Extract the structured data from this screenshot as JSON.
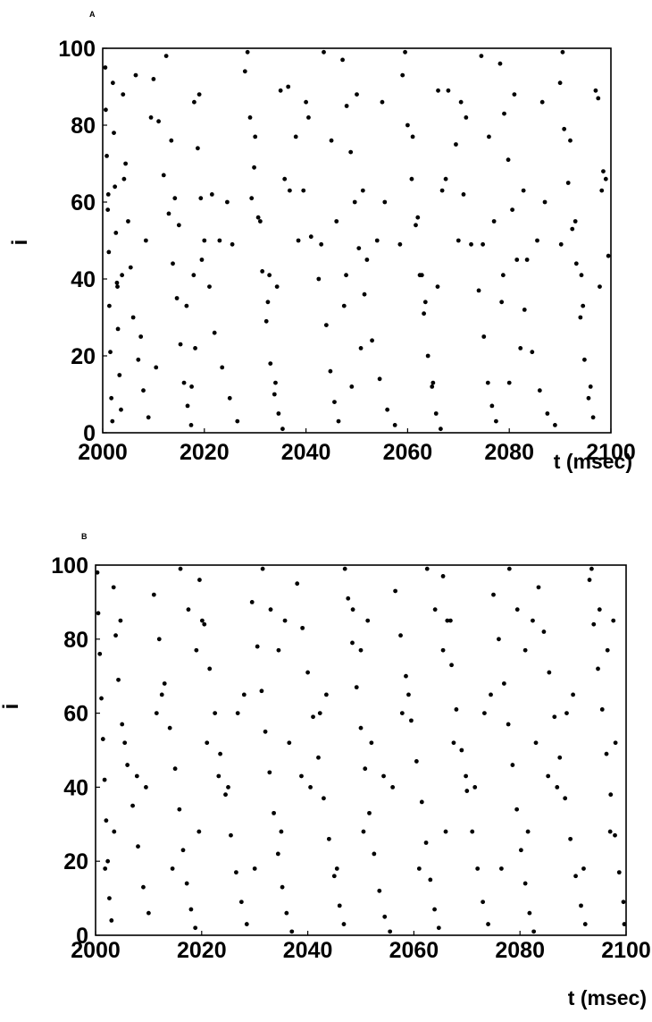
{
  "chart_data": [
    {
      "type": "scatter",
      "panel_label": "A",
      "xlabel": "t (msec)",
      "ylabel": "i",
      "xlim": [
        2000,
        2100
      ],
      "ylim": [
        0,
        100
      ],
      "x_ticks": [
        2000,
        2020,
        2040,
        2060,
        2080,
        2100
      ],
      "y_ticks": [
        0,
        20,
        40,
        60,
        80,
        100
      ],
      "grid": false,
      "marker_color": "#000000",
      "points_x": [
        2000.5,
        2000.6,
        2000.8,
        2001.0,
        2001.2,
        2001.3,
        2001.5,
        2001.7,
        2001.9,
        2002.0,
        2002.2,
        2002.4,
        2002.6,
        2002.8,
        2003.0,
        2003.3,
        2003.6,
        2004.0,
        2004.5,
        2005.0,
        2005.5,
        2006.0,
        2007.0,
        2008.0,
        2009.0,
        2010.0,
        2011.0,
        2012.0,
        2013.0,
        2013.8,
        2014.6,
        2015.3,
        2016.0,
        2016.7,
        2017.4,
        2018.0,
        2018.7,
        2019.3,
        2020.0,
        2021.0,
        2022.0,
        2023.5,
        2025.0,
        2026.5,
        2028.0,
        2029.0,
        2029.8,
        2030.6,
        2031.4,
        2032.2,
        2033.0,
        2033.8,
        2034.6,
        2035.4,
        2036.5,
        2038.0,
        2039.5,
        2041.0,
        2042.5,
        2044.0,
        2044.8,
        2045.6,
        2046.4,
        2047.2,
        2048.0,
        2048.8,
        2049.6,
        2050.4,
        2051.5,
        2053.0,
        2054.5,
        2056.0,
        2057.5,
        2059.0,
        2060.0,
        2060.8,
        2061.6,
        2062.4,
        2063.2,
        2064.0,
        2064.8,
        2065.6,
        2066.5,
        2068.0,
        2069.5,
        2071.0,
        2072.5,
        2074.0,
        2075.0,
        2075.8,
        2076.6,
        2077.4,
        2078.2,
        2079.0,
        2079.8,
        2080.6,
        2081.5,
        2083.0,
        2084.5,
        2086.0,
        2087.5,
        2089.0,
        2090.0,
        2090.8,
        2091.6,
        2092.4,
        2093.2,
        2094.0,
        2094.8,
        2095.6,
        2096.5,
        2097.5,
        2098.5,
        2099.5,
        2012.5,
        2013.5,
        2015.0,
        2016.5,
        2017.5,
        2019.0,
        2028.5,
        2030.0,
        2031.0,
        2032.5,
        2034.0,
        2035.0,
        2043.5,
        2045.0,
        2046.0,
        2047.5,
        2049.0,
        2050.0,
        2059.5,
        2061.0,
        2062.0,
        2063.5,
        2065.0,
        2066.0,
        2074.5,
        2076.0,
        2077.0,
        2078.5,
        2080.0,
        2081.0,
        2090.5,
        2092.0,
        2093.0,
        2094.5,
        2096.0,
        2097.0,
        2004.2,
        2019.5,
        2035.8,
        2052.0,
        2067.5,
        2083.5,
        2099.0,
        2009.5,
        2024.5,
        2040.5,
        2055.5,
        2071.5,
        2087.0,
        2002.9,
        2018.2,
        2034.3,
        2050.8,
        2065.9,
        2082.2,
        2097.8,
        2008.5,
        2023.0,
        2038.5,
        2054.0,
        2070.0,
        2085.5,
        2006.5
      ],
      "points_y": [
        95,
        84,
        72,
        58,
        47,
        33,
        21,
        9,
        3,
        91,
        78,
        64,
        52,
        39,
        27,
        15,
        6,
        88,
        70,
        55,
        43,
        30,
        19,
        11,
        4,
        92,
        81,
        67,
        57,
        44,
        35,
        23,
        13,
        7,
        2,
        86,
        74,
        61,
        50,
        38,
        26,
        17,
        9,
        3,
        94,
        82,
        69,
        56,
        42,
        29,
        18,
        10,
        5,
        1,
        90,
        77,
        63,
        51,
        40,
        28,
        16,
        8,
        3,
        97,
        85,
        73,
        60,
        48,
        36,
        24,
        14,
        6,
        2,
        93,
        80,
        66,
        54,
        41,
        31,
        20,
        12,
        5,
        1,
        89,
        75,
        62,
        49,
        37,
        25,
        13,
        7,
        3,
        96,
        83,
        71,
        58,
        45,
        32,
        21,
        11,
        5,
        2,
        91,
        79,
        65,
        53,
        44,
        30,
        19,
        9,
        4,
        87,
        68,
        46,
        98,
        76,
        54,
        33,
        12,
        88,
        99,
        77,
        55,
        34,
        13,
        89,
        99,
        76,
        55,
        33,
        12,
        88,
        99,
        77,
        56,
        34,
        13,
        89,
        98,
        77,
        55,
        34,
        13,
        88,
        99,
        76,
        55,
        33,
        12,
        89,
        66,
        45,
        66,
        45,
        66,
        45,
        66,
        82,
        60,
        82,
        60,
        82,
        60,
        38,
        22,
        38,
        22,
        38,
        22,
        38,
        50,
        50,
        50,
        50,
        50,
        50,
        93
      ],
      "points_x_extra": [
        2001.1,
        2003.8,
        2007.5,
        2010.5,
        2014.2,
        2017.9,
        2021.5,
        2025.5,
        2029.3,
        2032.8,
        2036.8,
        2040.0,
        2043.0,
        2047.9,
        2051.2,
        2055.0,
        2058.5,
        2062.8,
        2066.8,
        2070.5,
        2074.8,
        2078.8,
        2082.8,
        2086.5,
        2090.2,
        2094.2,
        2098.2
      ],
      "points_y_extra": [
        62,
        41,
        25,
        17,
        61,
        41,
        62,
        49,
        61,
        41,
        63,
        86,
        49,
        41,
        63,
        86,
        49,
        41,
        63,
        86,
        49,
        41,
        63,
        86,
        49,
        41,
        63
      ]
    },
    {
      "type": "scatter",
      "panel_label": "B",
      "xlabel": "t (msec)",
      "ylabel": "i",
      "xlim": [
        2000,
        2100
      ],
      "ylim": [
        0,
        100
      ],
      "x_ticks": [
        2000,
        2020,
        2040,
        2060,
        2080,
        2100
      ],
      "y_ticks": [
        0,
        20,
        40,
        60,
        80,
        100
      ],
      "grid": false,
      "marker_color": "#000000",
      "points_x": [
        2000.3,
        2000.5,
        2000.8,
        2001.1,
        2001.4,
        2001.7,
        2002.0,
        2002.3,
        2002.6,
        2003.0,
        2003.4,
        2003.8,
        2004.3,
        2005.0,
        2006.0,
        2007.0,
        2008.0,
        2009.0,
        2010.0,
        2011.0,
        2012.0,
        2013.0,
        2014.0,
        2015.0,
        2015.8,
        2016.5,
        2017.2,
        2018.0,
        2018.8,
        2019.6,
        2020.5,
        2021.5,
        2022.5,
        2023.5,
        2024.5,
        2025.5,
        2026.5,
        2027.5,
        2028.5,
        2029.5,
        2030.5,
        2031.3,
        2032.0,
        2032.8,
        2033.6,
        2034.4,
        2035.2,
        2036.0,
        2037.0,
        2038.0,
        2039.0,
        2040.0,
        2041.0,
        2042.0,
        2043.0,
        2044.0,
        2045.0,
        2046.0,
        2046.8,
        2047.6,
        2048.4,
        2049.2,
        2050.0,
        2050.8,
        2051.6,
        2052.5,
        2053.5,
        2054.5,
        2055.5,
        2056.5,
        2057.5,
        2058.5,
        2059.5,
        2060.5,
        2061.5,
        2062.3,
        2063.1,
        2063.9,
        2064.7,
        2065.5,
        2066.3,
        2067.1,
        2068.0,
        2069.0,
        2070.0,
        2071.0,
        2072.0,
        2073.0,
        2074.0,
        2075.0,
        2076.0,
        2077.0,
        2077.8,
        2078.6,
        2079.4,
        2080.2,
        2081.0,
        2081.8,
        2082.6,
        2083.5,
        2084.5,
        2085.5,
        2086.5,
        2087.5,
        2088.5,
        2089.5,
        2090.5,
        2091.5,
        2092.3,
        2093.1,
        2093.9,
        2094.7,
        2095.5,
        2096.3,
        2097.1,
        2097.9,
        2098.7,
        2099.5,
        2099.8,
        2016.0,
        2017.5,
        2019.0,
        2031.5,
        2033.0,
        2034.5,
        2047.0,
        2048.5,
        2050.0,
        2062.5,
        2064.0,
        2065.5,
        2078.0,
        2079.5,
        2081.0,
        2093.5,
        2095.0,
        2096.5,
        2012.5,
        2028.0,
        2043.5,
        2059.0,
        2074.5,
        2090.0,
        2005.5,
        2021.0,
        2036.5,
        2052.0,
        2067.5,
        2083.0,
        2098.0,
        2009.5,
        2025.0,
        2040.5,
        2056.0,
        2071.5,
        2087.0,
        2003.5,
        2019.5,
        2035.0,
        2050.5,
        2066.0,
        2081.5,
        2097.0,
        2001.8,
        2014.5,
        2030.0,
        2045.5,
        2061.0,
        2076.5,
        2092.0,
        2007.8,
        2023.2,
        2038.8,
        2054.3,
        2069.8,
        2085.3,
        2011.5,
        2026.8,
        2042.3,
        2057.8,
        2073.3,
        2088.8,
        2004.7,
        2020.1,
        2035.7,
        2051.3,
        2066.9,
        2082.4,
        2097.6
      ],
      "points_y": [
        98,
        87,
        76,
        64,
        53,
        42,
        31,
        20,
        10,
        4,
        94,
        81,
        69,
        57,
        46,
        35,
        24,
        13,
        6,
        92,
        80,
        68,
        56,
        45,
        34,
        23,
        14,
        7,
        2,
        96,
        84,
        72,
        60,
        49,
        38,
        27,
        17,
        9,
        3,
        90,
        78,
        66,
        55,
        44,
        33,
        22,
        13,
        6,
        1,
        95,
        83,
        71,
        59,
        48,
        37,
        26,
        16,
        8,
        3,
        91,
        79,
        67,
        56,
        45,
        33,
        22,
        12,
        5,
        1,
        93,
        81,
        70,
        58,
        47,
        36,
        25,
        15,
        7,
        2,
        97,
        85,
        73,
        61,
        50,
        39,
        28,
        18,
        9,
        3,
        92,
        80,
        68,
        57,
        46,
        34,
        23,
        14,
        6,
        1,
        94,
        82,
        71,
        59,
        48,
        37,
        26,
        16,
        8,
        3,
        96,
        84,
        72,
        61,
        49,
        38,
        27,
        17,
        9,
        3,
        99,
        88,
        77,
        99,
        88,
        77,
        99,
        88,
        77,
        99,
        88,
        77,
        99,
        88,
        77,
        99,
        88,
        77,
        65,
        65,
        65,
        65,
        65,
        65,
        52,
        52,
        52,
        52,
        52,
        52,
        52,
        40,
        40,
        40,
        40,
        40,
        40,
        28,
        28,
        28,
        28,
        28,
        28,
        28,
        18,
        18,
        18,
        18,
        18,
        18,
        18,
        43,
        43,
        43,
        43,
        43,
        43,
        60,
        60,
        60,
        60,
        60,
        60,
        85,
        85,
        85,
        85,
        85,
        85,
        85
      ],
      "points_x_extra": [],
      "points_y_extra": []
    }
  ]
}
